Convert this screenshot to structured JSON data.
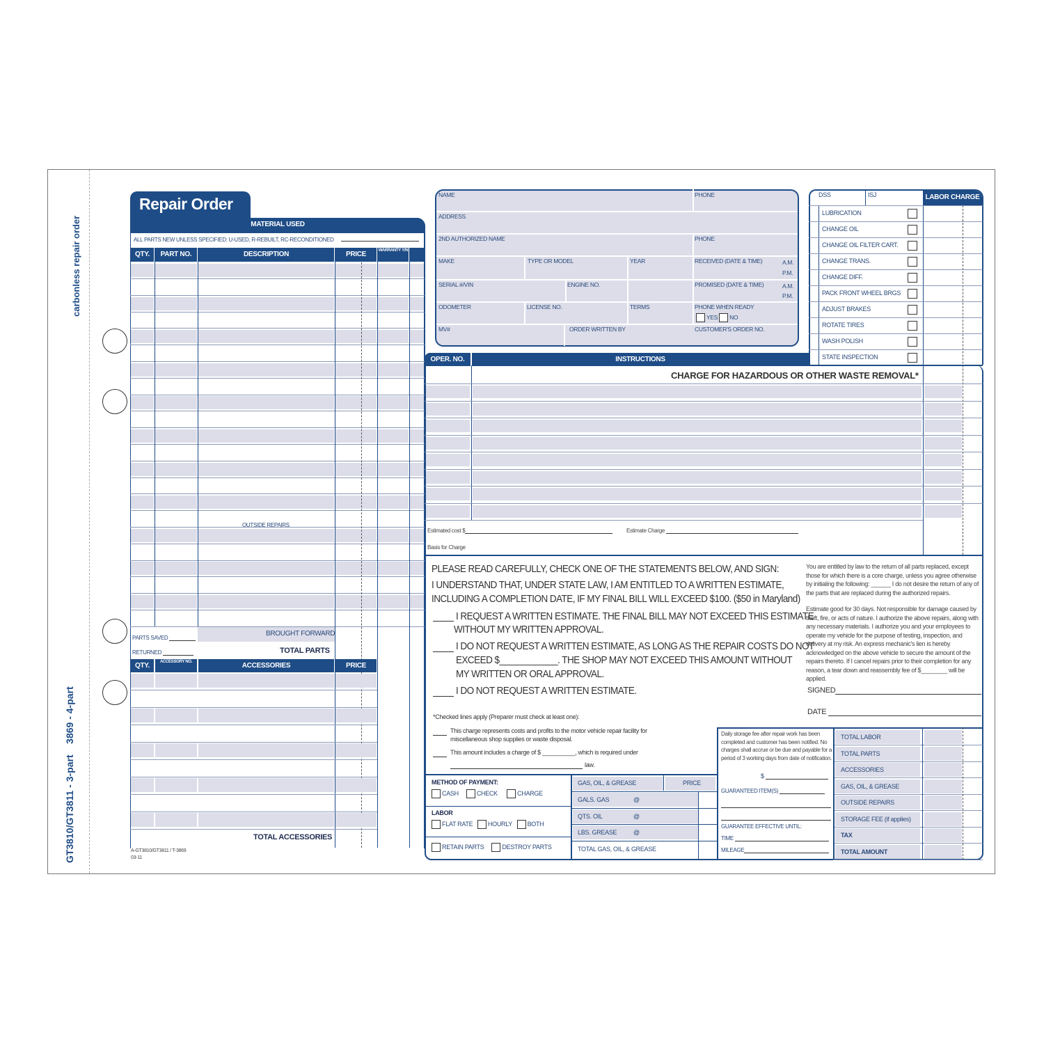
{
  "colors": {
    "brand": "#1e4c86",
    "shade": "#dcdde9"
  },
  "side": {
    "top": "carbonless repair order",
    "bottom": "GT3810/GT3811 - 3-part    3869 - 4-part"
  },
  "title": "Repair Order",
  "material": {
    "header": "MATERIAL USED",
    "note": "ALL PARTS NEW UNLESS SPECIFIED: U-USED, R-REBUILT, RC-RECONDITIONED",
    "cols": [
      "QTY.",
      "PART NO.",
      "DESCRIPTION",
      "PRICE",
      "WARRANTY Y/N"
    ],
    "outside_repairs": "OUTSIDE REPAIRS",
    "parts_saved": "PARTS SAVED",
    "returned": "RETURNED",
    "brought_forward": "BROUGHT FORWARD",
    "total_parts": "TOTAL PARTS"
  },
  "accessories": {
    "cols": [
      "QTY.",
      "ACCESSORY NO.",
      "ACCESSORIES",
      "PRICE"
    ],
    "total": "TOTAL ACCESSORIES"
  },
  "footer_code": "A-GT3810/GT3811 / T-3869",
  "footer_date": "03-11",
  "customer": {
    "name": "NAME",
    "phone": "PHONE",
    "address": "ADDRESS",
    "auth": "2ND AUTHORIZED NAME",
    "phone2": "PHONE",
    "make": "MAKE",
    "model": "TYPE OR MODEL",
    "year": "YEAR",
    "received": "RECEIVED (DATE & TIME)",
    "am": "A.M.",
    "pm": "P.M.",
    "serial": "SERIAL #/VIN",
    "engine": "ENGINE NO.",
    "promised": "PROMISED (DATE & TIME)",
    "am2": "A.M.",
    "pm2": "P.M.",
    "odometer": "ODOMETER",
    "license": "LICENSE NO.",
    "terms": "TERMS",
    "phone_ready": "PHONE WHEN READY",
    "yes": "YES",
    "no": "NO",
    "mv": "MV#",
    "written_by": "ORDER WRITTEN BY",
    "cust_order": "CUSTOMER'S ORDER NO."
  },
  "services": {
    "dss": "DSS",
    "isj": "ISJ",
    "labor_charge": "LABOR CHARGE",
    "items": [
      "LUBRICATION",
      "CHANGE OIL",
      "CHANGE OIL FILTER CART.",
      "CHANGE TRANS.",
      "CHANGE DIFF.",
      "PACK FRONT WHEEL BRGS",
      "ADJUST BRAKES",
      "ROTATE TIRES",
      "WASH POLISH",
      "STATE INSPECTION"
    ]
  },
  "instructions": {
    "oper": "OPER. NO.",
    "header": "INSTRUCTIONS",
    "hazard": "CHARGE FOR HAZARDOUS OR OTHER WASTE REMOVAL*",
    "est_cost": "Estimated cost $",
    "est_charge": "Estimate Charge",
    "basis": "Basis for Charge"
  },
  "statement": {
    "l1": "PLEASE READ CAREFULLY, CHECK ONE OF THE STATEMENTS BELOW, AND SIGN:",
    "l2": "I UNDERSTAND THAT, UNDER STATE LAW, I AM ENTITLED TO A WRITTEN ESTIMATE,",
    "l3": "INCLUDING A COMPLETION DATE, IF MY FINAL BILL WILL EXCEED $100. ($50 in Maryland)",
    "o1a": "I REQUEST A WRITTEN ESTIMATE.  THE FINAL BILL MAY NOT EXCEED THIS ESTIMATE",
    "o1b": "WITHOUT MY WRITTEN APPROVAL.",
    "o2a": "I DO NOT REQUEST A WRITTEN ESTIMATE, AS LONG AS THE REPAIR COSTS DO NOT",
    "o2b": "EXCEED $____________.  THE SHOP MAY NOT EXCEED THIS AMOUNT WITHOUT",
    "o2c": "MY WRITTEN OR ORAL APPROVAL.",
    "o3": "I DO NOT REQUEST A WRITTEN ESTIMATE.",
    "p1": "You are entitled by law to the return of all parts replaced, except those for which there is a core charge, unless you agree otherwise by initialing the following: ______ I do not desire the return of any of the parts that are replaced during the authorized repairs.",
    "p2": "Estimate good for 30 days. Not responsible for damage caused by theft, fire, or acts of nature. I authorize the above repairs, along with any necessary materials. I authorize you and your employees to operate my vehicle for the purpose of testing, inspection, and delivery at my risk. An express mechanic's lien is hereby acknowledged on the above vehicle to secure the amount of the repairs thereto. If I cancel repairs prior to their completion for any reason, a tear down and reassembly fee of $________ will be applied.",
    "signed": "SIGNED",
    "date": "DATE",
    "checked": "*Checked lines apply (Preparer must check at least one):",
    "c1a": "This charge represents costs and profits to the motor vehicle repair facility for",
    "c1b": "miscellaneous shop supplies or waste disposal.",
    "c2a": "This amount includes a charge of $ __________, which is required under",
    "c2b": "law."
  },
  "payment": {
    "method": "METHOD OF PAYMENT:",
    "cash": "CASH",
    "check": "CHECK",
    "charge": "CHARGE",
    "labor": "LABOR",
    "flat": "FLAT RATE",
    "hourly": "HOURLY",
    "both": "BOTH",
    "retain": "RETAIN PARTS",
    "destroy": "DESTROY PARTS"
  },
  "gas": {
    "header": "GAS, OIL, & GREASE",
    "price": "PRICE",
    "rows": [
      "GALS. GAS",
      "QTS. OIL",
      "LBS. GREASE"
    ],
    "at": "@",
    "total": "TOTAL GAS, OIL, & GREASE"
  },
  "storage": {
    "text": "Daily storage fee after repair work has been completed and customer has been notified. No charges shall accrue or be due and payable for a period of 3 working days from date of notification.",
    "dollar": "$",
    "guaranteed": "GUARANTEED ITEM(S)",
    "until": "GUARANTEE EFFECTIVE UNTIL:",
    "time": "TIME",
    "mileage": "MILEAGE"
  },
  "totals": [
    "TOTAL LABOR",
    "TOTAL PARTS",
    "ACCESSORIES",
    "GAS, OIL, & GREASE",
    "OUTSIDE REPAIRS",
    "STORAGE FEE (if applies)",
    "TAX",
    "TOTAL AMOUNT"
  ]
}
